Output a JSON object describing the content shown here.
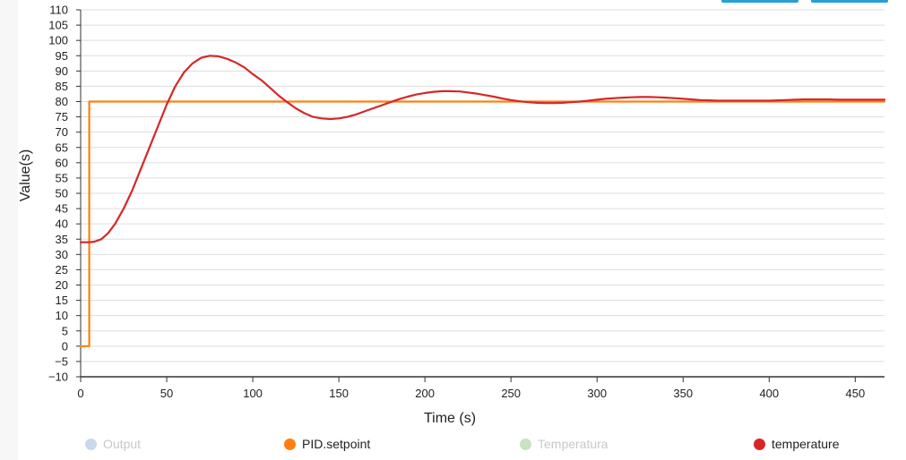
{
  "chart_data": {
    "type": "line",
    "xlabel": "Time (s)",
    "ylabel": "Value(s)",
    "xlim": [
      0,
      467
    ],
    "ylim": [
      -10,
      110
    ],
    "x_ticks": [
      0,
      50,
      100,
      150,
      200,
      250,
      300,
      350,
      400,
      450
    ],
    "y_ticks": [
      -10,
      -5,
      0,
      5,
      10,
      15,
      20,
      25,
      30,
      35,
      40,
      45,
      50,
      55,
      60,
      65,
      70,
      75,
      80,
      85,
      90,
      95,
      100,
      105,
      110
    ],
    "grid": true,
    "legend_position": "bottom",
    "series": [
      {
        "name": "Output",
        "color": "#c9d9ec",
        "visible": false,
        "x": [],
        "y": []
      },
      {
        "name": "PID.setpoint",
        "color": "#ff7f0e",
        "visible": true,
        "step": true,
        "x": [
          0,
          5,
          5,
          467
        ],
        "y": [
          0,
          0,
          80,
          80
        ]
      },
      {
        "name": "Temperatura",
        "color": "#c7e3c0",
        "visible": false,
        "x": [],
        "y": []
      },
      {
        "name": "temperature",
        "color": "#d62728",
        "visible": true,
        "x": [
          0,
          5,
          8,
          12,
          16,
          20,
          25,
          30,
          35,
          40,
          45,
          50,
          55,
          60,
          65,
          70,
          75,
          80,
          85,
          90,
          95,
          100,
          105,
          110,
          115,
          120,
          125,
          130,
          135,
          140,
          145,
          150,
          155,
          160,
          165,
          170,
          175,
          180,
          185,
          190,
          195,
          200,
          205,
          210,
          215,
          220,
          225,
          230,
          235,
          240,
          245,
          250,
          255,
          260,
          265,
          270,
          275,
          280,
          285,
          290,
          295,
          300,
          305,
          310,
          315,
          320,
          325,
          330,
          335,
          340,
          345,
          350,
          355,
          360,
          365,
          370,
          375,
          380,
          385,
          390,
          395,
          400,
          405,
          410,
          415,
          420,
          425,
          430,
          435,
          440,
          445,
          450,
          455,
          460,
          467
        ],
        "y": [
          34,
          34,
          34.2,
          35,
          37,
          40,
          45,
          51,
          58,
          65,
          72,
          79,
          85,
          89.5,
          92.5,
          94.3,
          95,
          94.8,
          94,
          92.8,
          91.2,
          89,
          87,
          84.5,
          82,
          79.8,
          77.8,
          76.2,
          75,
          74.5,
          74.3,
          74.5,
          75,
          75.8,
          76.8,
          77.8,
          78.8,
          79.8,
          80.8,
          81.6,
          82.3,
          82.8,
          83.2,
          83.4,
          83.4,
          83.3,
          83,
          82.6,
          82.1,
          81.6,
          81,
          80.5,
          80.1,
          79.8,
          79.6,
          79.5,
          79.5,
          79.6,
          79.8,
          80,
          80.3,
          80.6,
          80.9,
          81.1,
          81.3,
          81.4,
          81.5,
          81.5,
          81.4,
          81.3,
          81.1,
          80.9,
          80.7,
          80.5,
          80.4,
          80.3,
          80.3,
          80.3,
          80.3,
          80.3,
          80.3,
          80.3,
          80.4,
          80.5,
          80.6,
          80.7,
          80.7,
          80.7,
          80.7,
          80.6,
          80.6,
          80.6,
          80.6,
          80.6,
          80.6
        ]
      }
    ]
  }
}
